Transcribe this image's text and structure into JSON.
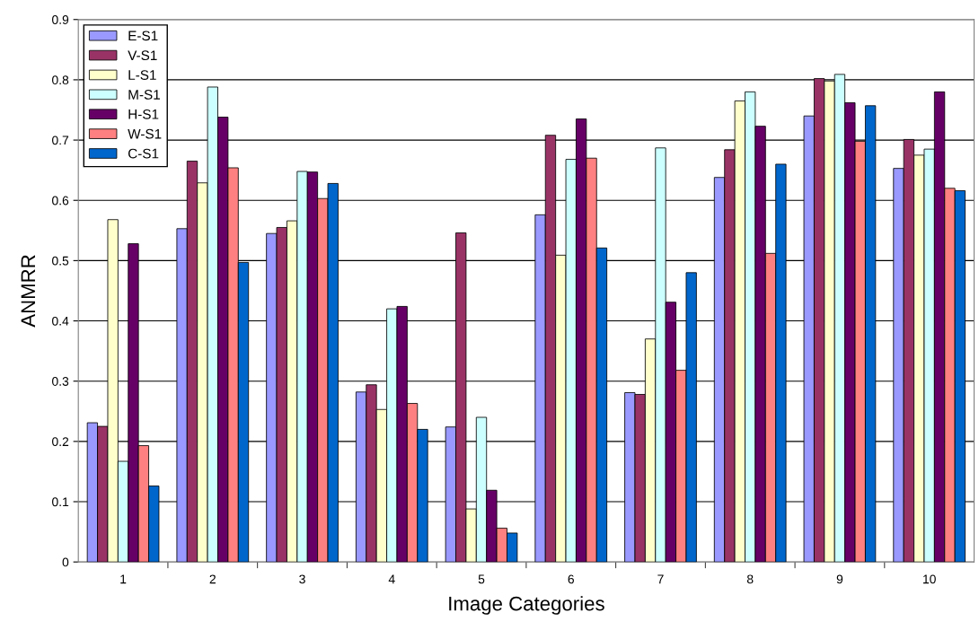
{
  "chart_data": {
    "type": "bar",
    "xlabel": "Image Categories",
    "ylabel": "ANMRR",
    "categories": [
      "1",
      "2",
      "3",
      "4",
      "5",
      "6",
      "7",
      "8",
      "9",
      "10"
    ],
    "series": [
      {
        "name": "E-S1",
        "color": "#9999ff",
        "values": [
          0.231,
          0.553,
          0.545,
          0.282,
          0.224,
          0.576,
          0.281,
          0.638,
          0.74,
          0.653
        ]
      },
      {
        "name": "V-S1",
        "color": "#993366",
        "values": [
          0.225,
          0.665,
          0.555,
          0.294,
          0.546,
          0.708,
          0.278,
          0.684,
          0.802,
          0.701
        ]
      },
      {
        "name": "L-S1",
        "color": "#ffffcc",
        "values": [
          0.568,
          0.629,
          0.566,
          0.253,
          0.088,
          0.509,
          0.37,
          0.765,
          0.798,
          0.675
        ]
      },
      {
        "name": "M-S1",
        "color": "#ccffff",
        "values": [
          0.167,
          0.788,
          0.648,
          0.42,
          0.24,
          0.668,
          0.687,
          0.78,
          0.809,
          0.685
        ]
      },
      {
        "name": "H-S1",
        "color": "#660066",
        "values": [
          0.528,
          0.738,
          0.647,
          0.424,
          0.119,
          0.735,
          0.431,
          0.723,
          0.762,
          0.78
        ]
      },
      {
        "name": "W-S1",
        "color": "#ff8080",
        "values": [
          0.193,
          0.654,
          0.603,
          0.263,
          0.056,
          0.67,
          0.318,
          0.512,
          0.698,
          0.62
        ]
      },
      {
        "name": "C-S1",
        "color": "#0066cc",
        "values": [
          0.126,
          0.497,
          0.628,
          0.22,
          0.048,
          0.521,
          0.48,
          0.66,
          0.757,
          0.616
        ]
      }
    ],
    "ylim": [
      0,
      0.9
    ],
    "yticks": [
      0,
      0.1,
      0.2,
      0.3,
      0.4,
      0.5,
      0.6,
      0.7,
      0.8,
      0.9
    ],
    "grid": "y",
    "legend": "top left"
  }
}
